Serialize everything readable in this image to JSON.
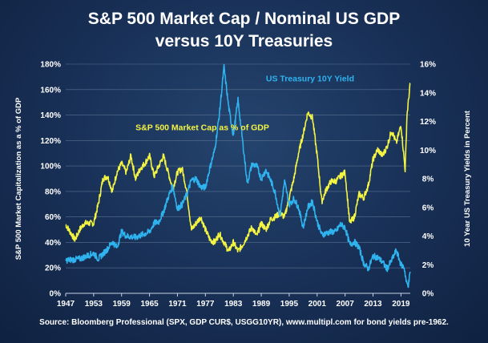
{
  "title_lines": [
    "S&P 500 Market Cap / Nominal US GDP",
    "versus 10Y Treasuries"
  ],
  "source": "Source: Bloomberg Professional (SPX, GDP CUR$, USGG10YR), www.multipl.com for bond yields pre-1962.",
  "colors": {
    "market_cap": "#f4f442",
    "treasury": "#2fb3ef",
    "background": "#1b3459",
    "grid": "#5a7090"
  },
  "chart_data": {
    "type": "line",
    "grid": true,
    "xlim": [
      1947,
      2021
    ],
    "x_ticks": [
      "1947",
      "1953",
      "1959",
      "1965",
      "1971",
      "1977",
      "1983",
      "1989",
      "1995",
      "2001",
      "2007",
      "2013",
      "2019"
    ],
    "y_left": {
      "label": "S&P 500 Market Capitalization as a % of GDP",
      "range": [
        0,
        180
      ],
      "ticks": [
        "0%",
        "20%",
        "40%",
        "60%",
        "80%",
        "100%",
        "120%",
        "140%",
        "160%",
        "180%"
      ]
    },
    "y_right": {
      "label": "10 Year US Treasury Yields in Percent",
      "range": [
        0,
        16
      ],
      "ticks": [
        "0%",
        "2%",
        "4%",
        "6%",
        "8%",
        "10%",
        "12%",
        "14%",
        "16%"
      ]
    },
    "series": [
      {
        "name": "S&P 500 Market Cap as % of GDP",
        "axis": "left",
        "color": "#f4f442",
        "points": [
          [
            1947,
            54
          ],
          [
            1949,
            42
          ],
          [
            1950,
            50
          ],
          [
            1951,
            55
          ],
          [
            1952,
            55
          ],
          [
            1953,
            55
          ],
          [
            1954,
            70
          ],
          [
            1955,
            90
          ],
          [
            1956,
            92
          ],
          [
            1957,
            80
          ],
          [
            1958,
            95
          ],
          [
            1959,
            102
          ],
          [
            1960,
            95
          ],
          [
            1961,
            108
          ],
          [
            1962,
            90
          ],
          [
            1963,
            98
          ],
          [
            1964,
            102
          ],
          [
            1965,
            108
          ],
          [
            1966,
            92
          ],
          [
            1967,
            100
          ],
          [
            1968,
            108
          ],
          [
            1969,
            95
          ],
          [
            1970,
            82
          ],
          [
            1971,
            95
          ],
          [
            1972,
            98
          ],
          [
            1973,
            80
          ],
          [
            1974,
            50
          ],
          [
            1975,
            55
          ],
          [
            1976,
            60
          ],
          [
            1977,
            50
          ],
          [
            1978,
            42
          ],
          [
            1979,
            40
          ],
          [
            1980,
            47
          ],
          [
            1981,
            40
          ],
          [
            1982,
            33
          ],
          [
            1983,
            40
          ],
          [
            1984,
            33
          ],
          [
            1985,
            38
          ],
          [
            1986,
            45
          ],
          [
            1987,
            52
          ],
          [
            1988,
            45
          ],
          [
            1989,
            55
          ],
          [
            1990,
            50
          ],
          [
            1991,
            58
          ],
          [
            1992,
            60
          ],
          [
            1993,
            63
          ],
          [
            1994,
            60
          ],
          [
            1995,
            75
          ],
          [
            1996,
            90
          ],
          [
            1997,
            110
          ],
          [
            1998,
            125
          ],
          [
            1999,
            142
          ],
          [
            2000,
            138
          ],
          [
            2001,
            108
          ],
          [
            2002,
            72
          ],
          [
            2003,
            82
          ],
          [
            2004,
            88
          ],
          [
            2005,
            88
          ],
          [
            2006,
            92
          ],
          [
            2007,
            95
          ],
          [
            2008,
            55
          ],
          [
            2009,
            60
          ],
          [
            2010,
            78
          ],
          [
            2011,
            75
          ],
          [
            2012,
            85
          ],
          [
            2013,
            105
          ],
          [
            2014,
            113
          ],
          [
            2015,
            108
          ],
          [
            2016,
            115
          ],
          [
            2017,
            128
          ],
          [
            2018,
            118
          ],
          [
            2019,
            132
          ],
          [
            2019.9,
            97
          ],
          [
            2020.3,
            140
          ],
          [
            2020.8,
            158
          ],
          [
            2021,
            165
          ]
        ]
      },
      {
        "name": "US Treasury 10Y Yield",
        "axis": "right",
        "color": "#2fb3ef",
        "points": [
          [
            1947,
            2.3
          ],
          [
            1950,
            2.4
          ],
          [
            1953,
            2.8
          ],
          [
            1954,
            2.4
          ],
          [
            1956,
            3.1
          ],
          [
            1957,
            3.6
          ],
          [
            1958,
            3.2
          ],
          [
            1959,
            4.3
          ],
          [
            1960,
            4.0
          ],
          [
            1962,
            3.9
          ],
          [
            1965,
            4.3
          ],
          [
            1966,
            4.9
          ],
          [
            1967,
            5.0
          ],
          [
            1968,
            5.7
          ],
          [
            1969,
            6.7
          ],
          [
            1970,
            7.5
          ],
          [
            1971,
            5.9
          ],
          [
            1972,
            6.2
          ],
          [
            1973,
            6.9
          ],
          [
            1974,
            7.9
          ],
          [
            1975,
            8.0
          ],
          [
            1976,
            7.4
          ],
          [
            1977,
            7.4
          ],
          [
            1978,
            8.8
          ],
          [
            1979,
            10.0
          ],
          [
            1980,
            12.5
          ],
          [
            1981,
            15.8
          ],
          [
            1982,
            13.0
          ],
          [
            1983,
            11.0
          ],
          [
            1984,
            13.5
          ],
          [
            1985,
            10.6
          ],
          [
            1986,
            7.7
          ],
          [
            1987,
            9.0
          ],
          [
            1988,
            8.9
          ],
          [
            1989,
            8.0
          ],
          [
            1990,
            8.6
          ],
          [
            1991,
            7.9
          ],
          [
            1992,
            7.0
          ],
          [
            1993,
            5.4
          ],
          [
            1994,
            7.8
          ],
          [
            1995,
            6.2
          ],
          [
            1996,
            6.6
          ],
          [
            1997,
            6.0
          ],
          [
            1998,
            4.6
          ],
          [
            1999,
            6.0
          ],
          [
            2000,
            6.4
          ],
          [
            2001,
            5.0
          ],
          [
            2002,
            4.1
          ],
          [
            2003,
            4.2
          ],
          [
            2004,
            4.3
          ],
          [
            2005,
            4.3
          ],
          [
            2006,
            4.8
          ],
          [
            2007,
            4.6
          ],
          [
            2008,
            3.4
          ],
          [
            2009,
            3.6
          ],
          [
            2010,
            3.2
          ],
          [
            2011,
            2.1
          ],
          [
            2012,
            1.7
          ],
          [
            2013,
            2.6
          ],
          [
            2014,
            2.5
          ],
          [
            2015,
            2.2
          ],
          [
            2016,
            1.7
          ],
          [
            2017,
            2.3
          ],
          [
            2018,
            3.0
          ],
          [
            2019,
            2.0
          ],
          [
            2019.7,
            1.8
          ],
          [
            2020.2,
            0.7
          ],
          [
            2020.6,
            0.6
          ],
          [
            2021,
            1.5
          ]
        ]
      }
    ],
    "annotations": [
      {
        "text": "US Treasury 10Y Yield",
        "series": "US Treasury 10Y Yield",
        "x": 1990,
        "y_right": 14.8
      },
      {
        "text": "S&P 500 Market Cap as % of GDP",
        "series": "S&P 500 Market Cap as % of GDP",
        "x": 1962,
        "y_left": 128
      }
    ]
  }
}
